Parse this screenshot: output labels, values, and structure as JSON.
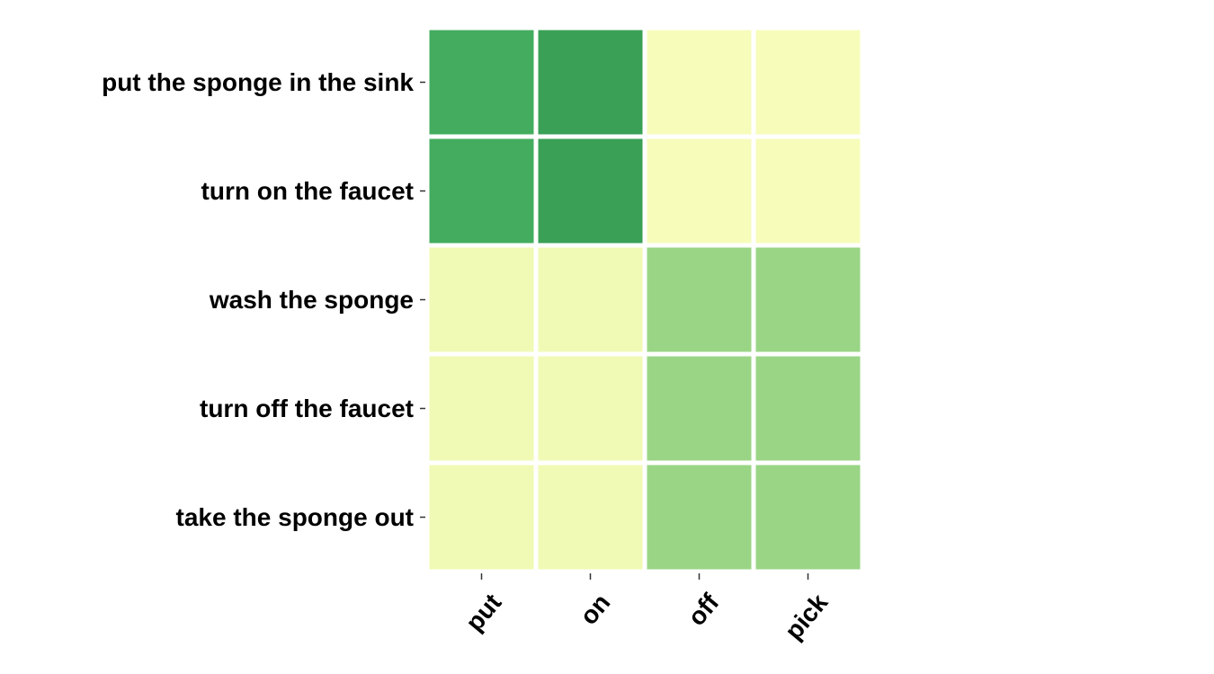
{
  "chart_data": {
    "type": "heatmap",
    "title": "",
    "xlabel": "",
    "ylabel": "",
    "rows": [
      "put the sponge in the sink",
      "turn on the faucet",
      "wash the sponge",
      "turn off the faucet",
      "take the sponge out"
    ],
    "columns": [
      "put",
      "on",
      "off",
      "pick"
    ],
    "values": [
      [
        0.62,
        0.66,
        0.12,
        0.12
      ],
      [
        0.62,
        0.66,
        0.12,
        0.12
      ],
      [
        0.15,
        0.15,
        0.42,
        0.42
      ],
      [
        0.15,
        0.15,
        0.42,
        0.42
      ],
      [
        0.15,
        0.15,
        0.42,
        0.42
      ]
    ],
    "colormap": "YlGn",
    "colorbar": false,
    "grid_line_color": "#ffffff"
  }
}
